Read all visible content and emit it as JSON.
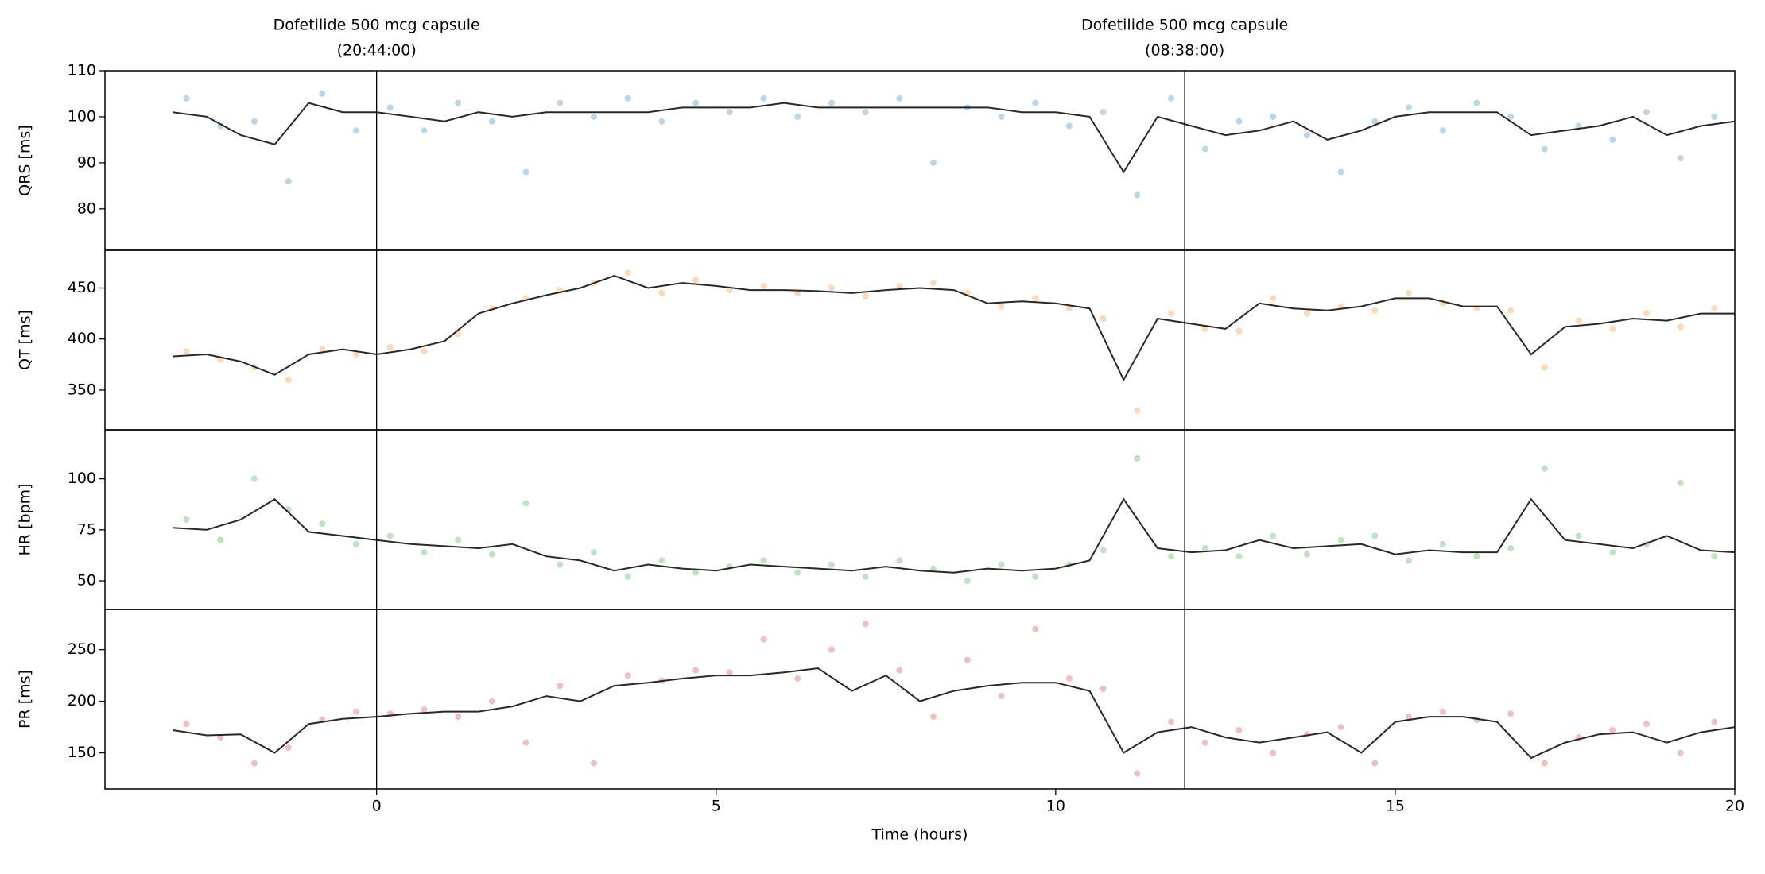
{
  "chart_data": [
    {
      "type": "line",
      "ylabel": "QRS [ms]",
      "xlim": [
        -4,
        20
      ],
      "ylim": [
        71,
        110
      ],
      "yticks": [
        80,
        90,
        100,
        110
      ],
      "annotations": [
        {
          "x": 0,
          "text": "Dofetilide 500 mcg capsule",
          "subtext": "(20:44:00)"
        },
        {
          "x": 11.9,
          "text": "Dofetilide 500 mcg capsule",
          "subtext": "(08:38:00)"
        }
      ],
      "x": [
        -3,
        -2.5,
        -2,
        -1.5,
        -1,
        -0.5,
        0,
        0.5,
        1,
        1.5,
        2,
        2.5,
        3,
        3.5,
        4,
        4.5,
        5,
        5.5,
        6,
        6.5,
        7,
        7.5,
        8,
        8.5,
        9,
        9.5,
        10,
        10.5,
        11,
        11.5,
        12,
        12.5,
        13,
        13.5,
        14,
        14.5,
        15,
        15.5,
        16,
        16.5,
        17,
        17.5,
        18,
        18.5,
        19,
        19.5,
        20
      ],
      "series": [
        {
          "type": "scatter",
          "color": "#1f77b4",
          "x": [
            -2.8,
            -2.3,
            -1.8,
            -1.3,
            -0.8,
            -0.3,
            0.2,
            0.7,
            1.2,
            1.7,
            2.2,
            2.7,
            3.2,
            3.7,
            4.2,
            4.7,
            5.2,
            5.7,
            6.2,
            6.7,
            7.2,
            7.7,
            8.2,
            8.7,
            9.2,
            9.7,
            10.2,
            10.7,
            11.2,
            11.7,
            12.2,
            12.7,
            13.2,
            13.7,
            14.2,
            14.7,
            15.2,
            15.7,
            16.2,
            16.7,
            17.2,
            17.7,
            18.2,
            18.7,
            19.2,
            19.7
          ],
          "values": [
            104,
            98,
            99,
            86,
            105,
            97,
            102,
            97,
            103,
            99,
            88,
            103,
            100,
            104,
            99,
            103,
            101,
            104,
            100,
            103,
            101,
            104,
            90,
            102,
            100,
            103,
            98,
            101,
            83,
            104,
            93,
            99,
            100,
            96,
            88,
            99,
            102,
            97,
            103,
            100,
            93,
            98,
            95,
            101,
            91,
            100
          ]
        },
        {
          "type": "line",
          "color": "#111111",
          "values": [
            101,
            100,
            96,
            94,
            103,
            101,
            101,
            100,
            99,
            101,
            100,
            101,
            101,
            101,
            101,
            102,
            102,
            102,
            103,
            102,
            102,
            102,
            102,
            102,
            102,
            101,
            101,
            100,
            88,
            100,
            98,
            96,
            97,
            99,
            95,
            97,
            100,
            101,
            101,
            101,
            96,
            97,
            98,
            100,
            96,
            98,
            99
          ]
        }
      ]
    },
    {
      "type": "line",
      "ylabel": "QT [ms]",
      "xlim": [
        -4,
        20
      ],
      "ylim": [
        311,
        487
      ],
      "yticks": [
        350,
        400,
        450
      ],
      "x": [
        -3,
        -2.5,
        -2,
        -1.5,
        -1,
        -0.5,
        0,
        0.5,
        1,
        1.5,
        2,
        2.5,
        3,
        3.5,
        4,
        4.5,
        5,
        5.5,
        6,
        6.5,
        7,
        7.5,
        8,
        8.5,
        9,
        9.5,
        10,
        10.5,
        11,
        11.5,
        12,
        12.5,
        13,
        13.5,
        14,
        14.5,
        15,
        15.5,
        16,
        16.5,
        17,
        17.5,
        18,
        18.5,
        19,
        19.5,
        20
      ],
      "series": [
        {
          "type": "scatter",
          "color": "#ff7f0e",
          "x": [
            -2.8,
            -2.3,
            -1.8,
            -1.3,
            -0.8,
            -0.3,
            0.2,
            0.7,
            1.2,
            1.7,
            2.2,
            2.7,
            3.2,
            3.7,
            4.2,
            4.7,
            5.2,
            5.7,
            6.2,
            6.7,
            7.2,
            7.7,
            8.2,
            8.7,
            9.2,
            9.7,
            10.2,
            10.7,
            11.2,
            11.7,
            12.2,
            12.7,
            13.2,
            13.7,
            14.2,
            14.7,
            15.2,
            15.7,
            16.2,
            16.7,
            17.2,
            17.7,
            18.2,
            18.7,
            19.2,
            19.7
          ],
          "values": [
            388,
            380,
            372,
            360,
            390,
            385,
            392,
            388,
            405,
            430,
            440,
            448,
            455,
            465,
            445,
            458,
            448,
            452,
            445,
            450,
            442,
            452,
            455,
            445,
            432,
            440,
            430,
            420,
            330,
            425,
            410,
            408,
            440,
            425,
            432,
            428,
            445,
            435,
            430,
            428,
            372,
            418,
            410,
            425,
            412,
            430
          ]
        },
        {
          "type": "line",
          "color": "#111111",
          "values": [
            383,
            385,
            378,
            365,
            385,
            390,
            385,
            390,
            398,
            425,
            435,
            443,
            450,
            462,
            450,
            455,
            452,
            448,
            448,
            447,
            445,
            448,
            450,
            448,
            435,
            437,
            435,
            430,
            360,
            420,
            415,
            410,
            435,
            430,
            428,
            432,
            440,
            440,
            432,
            432,
            385,
            412,
            415,
            420,
            418,
            425,
            425
          ]
        }
      ]
    },
    {
      "type": "line",
      "ylabel": "HR [bpm]",
      "xlim": [
        -4,
        20
      ],
      "ylim": [
        36,
        124
      ],
      "yticks": [
        50,
        75,
        100
      ],
      "x": [
        -3,
        -2.5,
        -2,
        -1.5,
        -1,
        -0.5,
        0,
        0.5,
        1,
        1.5,
        2,
        2.5,
        3,
        3.5,
        4,
        4.5,
        5,
        5.5,
        6,
        6.5,
        7,
        7.5,
        8,
        8.5,
        9,
        9.5,
        10,
        10.5,
        11,
        11.5,
        12,
        12.5,
        13,
        13.5,
        14,
        14.5,
        15,
        15.5,
        16,
        16.5,
        17,
        17.5,
        18,
        18.5,
        19,
        19.5,
        20
      ],
      "series": [
        {
          "type": "scatter",
          "color": "#2ca02c",
          "x": [
            -2.8,
            -2.3,
            -1.8,
            -1.3,
            -0.8,
            -0.3,
            0.2,
            0.7,
            1.2,
            1.7,
            2.2,
            2.7,
            3.2,
            3.7,
            4.2,
            4.7,
            5.2,
            5.7,
            6.2,
            6.7,
            7.2,
            7.7,
            8.2,
            8.7,
            9.2,
            9.7,
            10.2,
            10.7,
            11.2,
            11.7,
            12.2,
            12.7,
            13.2,
            13.7,
            14.2,
            14.7,
            15.2,
            15.7,
            16.2,
            16.7,
            17.2,
            17.7,
            18.2,
            18.7,
            19.2,
            19.7
          ],
          "values": [
            80,
            70,
            100,
            85,
            78,
            68,
            72,
            64,
            70,
            63,
            88,
            58,
            64,
            52,
            60,
            54,
            57,
            60,
            54,
            58,
            52,
            60,
            56,
            50,
            58,
            52,
            58,
            65,
            110,
            62,
            66,
            62,
            72,
            63,
            70,
            72,
            60,
            68,
            62,
            66,
            105,
            72,
            64,
            68,
            98,
            62
          ]
        },
        {
          "type": "line",
          "color": "#111111",
          "values": [
            76,
            75,
            80,
            90,
            74,
            72,
            70,
            68,
            67,
            66,
            68,
            62,
            60,
            55,
            58,
            56,
            55,
            58,
            57,
            56,
            55,
            57,
            55,
            54,
            56,
            55,
            56,
            60,
            90,
            66,
            64,
            65,
            70,
            66,
            67,
            68,
            63,
            65,
            64,
            64,
            90,
            70,
            68,
            66,
            72,
            65,
            64
          ]
        }
      ]
    },
    {
      "type": "line",
      "ylabel": "PR [ms]",
      "xlabel": "Time (hours)",
      "xlim": [
        -4,
        20
      ],
      "xticks": [
        0,
        5,
        10,
        15,
        20
      ],
      "ylim": [
        115,
        289
      ],
      "yticks": [
        150,
        200,
        250
      ],
      "x": [
        -3,
        -2.5,
        -2,
        -1.5,
        -1,
        -0.5,
        0,
        0.5,
        1,
        1.5,
        2,
        2.5,
        3,
        3.5,
        4,
        4.5,
        5,
        5.5,
        6,
        6.5,
        7,
        7.5,
        8,
        8.5,
        9,
        9.5,
        10,
        10.5,
        11,
        11.5,
        12,
        12.5,
        13,
        13.5,
        14,
        14.5,
        15,
        15.5,
        16,
        16.5,
        17,
        17.5,
        18,
        18.5,
        19,
        19.5,
        20
      ],
      "series": [
        {
          "type": "scatter",
          "color": "#d62728",
          "x": [
            -2.8,
            -2.3,
            -1.8,
            -1.3,
            -0.8,
            -0.3,
            0.2,
            0.7,
            1.2,
            1.7,
            2.2,
            2.7,
            3.2,
            3.7,
            4.2,
            4.7,
            5.2,
            5.7,
            6.2,
            6.7,
            7.2,
            7.7,
            8.2,
            8.7,
            9.2,
            9.7,
            10.2,
            10.7,
            11.2,
            11.7,
            12.2,
            12.7,
            13.2,
            13.7,
            14.2,
            14.7,
            15.2,
            15.7,
            16.2,
            16.7,
            17.2,
            17.7,
            18.2,
            18.7,
            19.2,
            19.7
          ],
          "values": [
            178,
            165,
            140,
            155,
            182,
            190,
            188,
            192,
            185,
            200,
            160,
            215,
            140,
            225,
            220,
            230,
            228,
            260,
            222,
            250,
            275,
            230,
            185,
            240,
            205,
            270,
            222,
            212,
            130,
            180,
            160,
            172,
            150,
            168,
            175,
            140,
            185,
            190,
            182,
            188,
            140,
            165,
            172,
            178,
            150,
            180
          ]
        },
        {
          "type": "line",
          "color": "#111111",
          "values": [
            172,
            167,
            168,
            150,
            178,
            183,
            185,
            188,
            190,
            190,
            195,
            205,
            200,
            215,
            218,
            222,
            225,
            225,
            228,
            232,
            210,
            225,
            200,
            210,
            215,
            218,
            218,
            210,
            150,
            170,
            175,
            165,
            160,
            165,
            170,
            150,
            180,
            185,
            185,
            180,
            145,
            160,
            168,
            170,
            160,
            170,
            175
          ]
        }
      ]
    }
  ]
}
